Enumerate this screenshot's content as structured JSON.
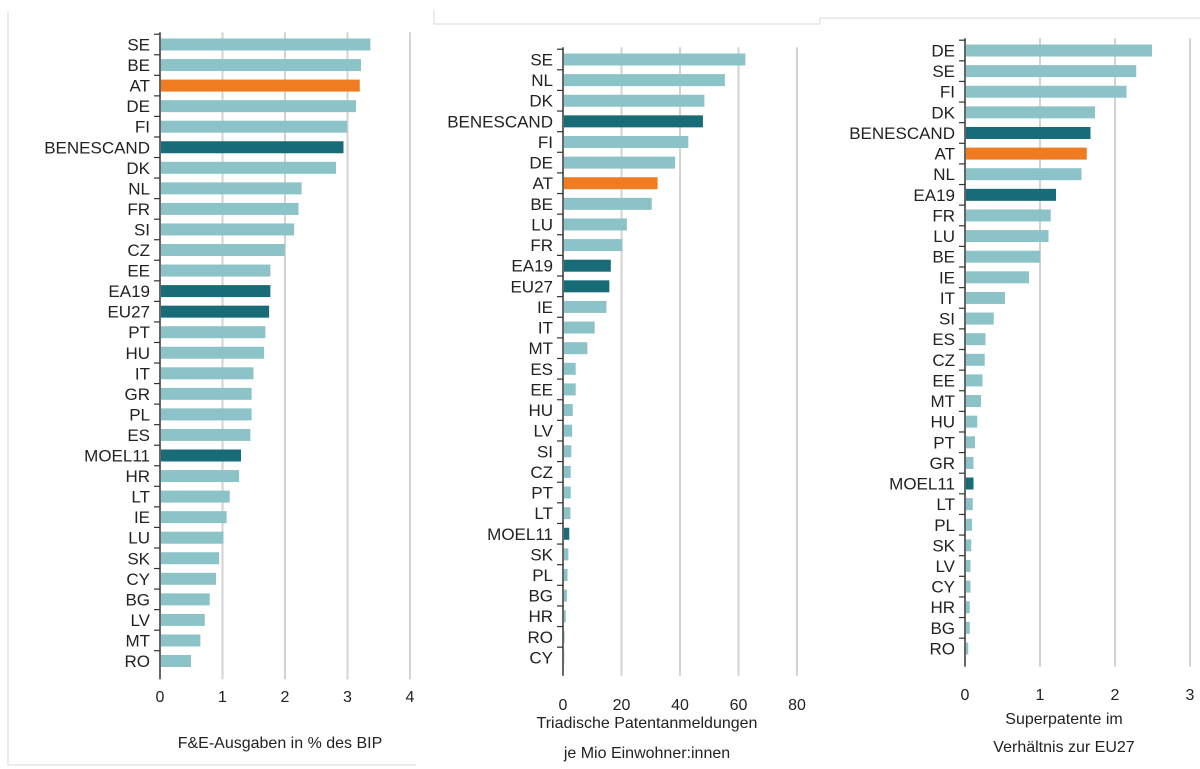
{
  "colors": {
    "light": "#8cc3c9",
    "dark": "#176c78",
    "highlight": "#ef7c22",
    "grid": "#d3d3d3"
  },
  "chart_data": [
    {
      "type": "bar",
      "orientation": "horizontal",
      "xlabel": "F&E-Ausgaben in % des BIP",
      "xlabel_lines": [
        "F&E-Ausgaben in % des BIP"
      ],
      "xlim": [
        0,
        4
      ],
      "ticks": [
        0,
        1,
        2,
        3,
        4
      ],
      "grid": true,
      "categories": [
        "SE",
        "BE",
        "AT",
        "DE",
        "FI",
        "BENESCAND",
        "DK",
        "NL",
        "FR",
        "SI",
        "CZ",
        "EE",
        "EA19",
        "EU27",
        "PT",
        "HU",
        "IT",
        "GR",
        "PL",
        "ES",
        "MOEL11",
        "HR",
        "LT",
        "IE",
        "LU",
        "SK",
        "CY",
        "BG",
        "LV",
        "MT",
        "RO"
      ],
      "values": [
        3.35,
        3.2,
        3.18,
        3.12,
        2.98,
        2.92,
        2.8,
        2.25,
        2.2,
        2.13,
        1.98,
        1.75,
        1.75,
        1.73,
        1.67,
        1.65,
        1.48,
        1.45,
        1.45,
        1.43,
        1.28,
        1.25,
        1.1,
        1.05,
        1.0,
        0.93,
        0.88,
        0.78,
        0.7,
        0.63,
        0.48
      ],
      "color_groups": [
        "light",
        "light",
        "highlight",
        "light",
        "light",
        "dark",
        "light",
        "light",
        "light",
        "light",
        "light",
        "light",
        "dark",
        "dark",
        "light",
        "light",
        "light",
        "light",
        "light",
        "light",
        "dark",
        "light",
        "light",
        "light",
        "light",
        "light",
        "light",
        "light",
        "light",
        "light",
        "light"
      ]
    },
    {
      "type": "bar",
      "orientation": "horizontal",
      "xlabel": "Triadische Patentanmeldungen je Mio Einwohner:innen",
      "xlabel_lines": [
        "Triadische Patentanmeldungen",
        "je Mio Einwohner:innen"
      ],
      "xlim": [
        0,
        80
      ],
      "ticks": [
        0,
        20,
        40,
        60,
        80
      ],
      "grid": true,
      "categories": [
        "SE",
        "NL",
        "DK",
        "BENESCAND",
        "FI",
        "DE",
        "AT",
        "BE",
        "LU",
        "FR",
        "EA19",
        "EU27",
        "IE",
        "IT",
        "MT",
        "ES",
        "EE",
        "HU",
        "LV",
        "SI",
        "CZ",
        "PT",
        "LT",
        "MOEL11",
        "SK",
        "PL",
        "BG",
        "HR",
        "RO",
        "CY"
      ],
      "values": [
        62,
        55,
        48,
        47.5,
        42.5,
        38,
        32,
        30,
        21.5,
        20,
        16,
        15.5,
        14.5,
        10.5,
        8,
        4,
        4,
        3,
        2.8,
        2.5,
        2.3,
        2.3,
        2.2,
        1.8,
        1.5,
        1.2,
        1.0,
        0.6,
        0.2,
        0.1
      ],
      "color_groups": [
        "light",
        "light",
        "light",
        "dark",
        "light",
        "light",
        "highlight",
        "light",
        "light",
        "light",
        "dark",
        "dark",
        "light",
        "light",
        "light",
        "light",
        "light",
        "light",
        "light",
        "light",
        "light",
        "light",
        "light",
        "dark",
        "light",
        "light",
        "light",
        "light",
        "light",
        "light"
      ]
    },
    {
      "type": "bar",
      "orientation": "horizontal",
      "xlabel": "Superpatente im Verhältnis zur EU27",
      "xlabel_lines": [
        "Superpatente im",
        "Verhältnis zur EU27"
      ],
      "xlim": [
        0,
        3
      ],
      "ticks": [
        0,
        1,
        2,
        3
      ],
      "grid": true,
      "categories": [
        "DE",
        "SE",
        "FI",
        "DK",
        "BENESCAND",
        "AT",
        "NL",
        "EA19",
        "FR",
        "LU",
        "BE",
        "IE",
        "IT",
        "SI",
        "ES",
        "CZ",
        "EE",
        "MT",
        "HU",
        "PT",
        "GR",
        "MOEL11",
        "LT",
        "PL",
        "SK",
        "LV",
        "CY",
        "HR",
        "BG",
        "RO"
      ],
      "values": [
        2.48,
        2.27,
        2.14,
        1.72,
        1.66,
        1.61,
        1.54,
        1.2,
        1.13,
        1.1,
        0.99,
        0.84,
        0.52,
        0.37,
        0.26,
        0.25,
        0.22,
        0.2,
        0.15,
        0.12,
        0.1,
        0.1,
        0.09,
        0.08,
        0.07,
        0.06,
        0.06,
        0.05,
        0.05,
        0.03
      ],
      "color_groups": [
        "light",
        "light",
        "light",
        "light",
        "dark",
        "highlight",
        "light",
        "dark",
        "light",
        "light",
        "light",
        "light",
        "light",
        "light",
        "light",
        "light",
        "light",
        "light",
        "light",
        "light",
        "light",
        "dark",
        "light",
        "light",
        "light",
        "light",
        "light",
        "light",
        "light",
        "light"
      ]
    }
  ]
}
